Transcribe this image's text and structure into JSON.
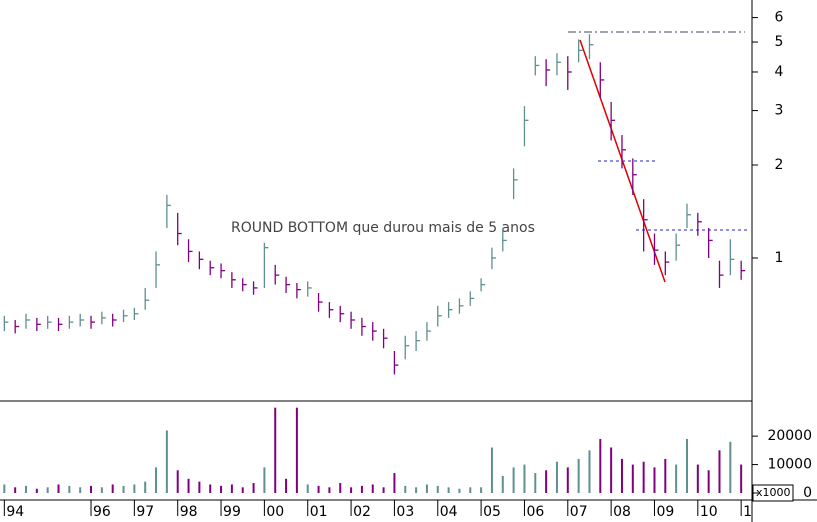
{
  "chart_data": {
    "type": "ohlc",
    "annotation": "ROUND BOTTOM que durou mais de 5 anos",
    "x": [
      1994,
      1994.25,
      1994.5,
      1994.75,
      1995,
      1995.25,
      1995.5,
      1995.75,
      1996,
      1996.25,
      1996.5,
      1996.75,
      1997,
      1997.25,
      1997.5,
      1997.75,
      1998,
      1998.25,
      1998.5,
      1998.75,
      1999,
      1999.25,
      1999.5,
      1999.75,
      2000,
      2000.25,
      2000.5,
      2000.75,
      2001,
      2001.25,
      2001.5,
      2001.75,
      2002,
      2002.25,
      2002.5,
      2002.75,
      2003,
      2003.25,
      2003.5,
      2003.75,
      2004,
      2004.25,
      2004.5,
      2004.75,
      2005,
      2005.25,
      2005.5,
      2005.75,
      2006,
      2006.25,
      2006.5,
      2006.75,
      2007,
      2007.25,
      2007.5,
      2007.75,
      2008,
      2008.25,
      2008.5,
      2008.75,
      2009,
      2009.25,
      2009.5,
      2009.75,
      2010,
      2010.25,
      2010.5,
      2010.75,
      2011
    ],
    "high": [
      0.65,
      0.63,
      0.66,
      0.64,
      0.65,
      0.64,
      0.65,
      0.66,
      0.65,
      0.67,
      0.66,
      0.68,
      0.69,
      0.8,
      1.05,
      1.6,
      1.4,
      1.15,
      1.05,
      0.98,
      0.96,
      0.9,
      0.86,
      0.84,
      1.12,
      0.95,
      0.87,
      0.83,
      0.84,
      0.77,
      0.72,
      0.7,
      0.67,
      0.64,
      0.62,
      0.59,
      0.5,
      0.56,
      0.58,
      0.62,
      0.7,
      0.72,
      0.74,
      0.78,
      0.86,
      1.08,
      1.25,
      1.95,
      3.1,
      4.5,
      4.4,
      4.6,
      4.5,
      5.1,
      5.3,
      4.3,
      3.2,
      2.5,
      2.1,
      1.55,
      1.2,
      1.05,
      1.2,
      1.5,
      1.4,
      1.25,
      0.98,
      1.15,
      0.98
    ],
    "low": [
      0.58,
      0.57,
      0.59,
      0.58,
      0.59,
      0.58,
      0.59,
      0.6,
      0.59,
      0.61,
      0.6,
      0.62,
      0.63,
      0.68,
      0.8,
      1.25,
      1.1,
      0.97,
      0.92,
      0.88,
      0.86,
      0.8,
      0.78,
      0.76,
      0.8,
      0.82,
      0.77,
      0.74,
      0.75,
      0.67,
      0.64,
      0.62,
      0.59,
      0.56,
      0.54,
      0.51,
      0.42,
      0.47,
      0.5,
      0.54,
      0.6,
      0.64,
      0.66,
      0.7,
      0.78,
      0.92,
      1.05,
      1.55,
      2.3,
      3.9,
      3.6,
      3.9,
      3.5,
      4.3,
      4.4,
      3.3,
      2.4,
      1.95,
      1.6,
      1.05,
      0.95,
      0.88,
      0.98,
      1.25,
      1.18,
      1.0,
      0.8,
      0.88,
      0.85
    ],
    "close": [
      0.62,
      0.6,
      0.63,
      0.61,
      0.62,
      0.61,
      0.62,
      0.63,
      0.62,
      0.64,
      0.63,
      0.65,
      0.66,
      0.73,
      0.95,
      1.48,
      1.2,
      1.05,
      0.99,
      0.93,
      0.91,
      0.85,
      0.82,
      0.8,
      1.08,
      0.88,
      0.82,
      0.79,
      0.8,
      0.72,
      0.68,
      0.66,
      0.63,
      0.6,
      0.58,
      0.55,
      0.45,
      0.52,
      0.54,
      0.58,
      0.65,
      0.68,
      0.7,
      0.74,
      0.82,
      1.0,
      1.14,
      1.79,
      2.79,
      4.2,
      4.06,
      4.3,
      4.0,
      4.7,
      4.9,
      3.77,
      2.79,
      2.24,
      1.86,
      1.33,
      1.06,
      0.97,
      1.1,
      1.38,
      1.31,
      1.14,
      0.88,
      0.99,
      0.91
    ],
    "ylim": [
      0.347,
      6.84
    ],
    "yticks": [
      1,
      2,
      3,
      4,
      5,
      6
    ],
    "log_scale": true,
    "up_color": "#5f8f8f",
    "down_color": "#800080",
    "xlim": [
      1993.9,
      2011.25
    ],
    "xticks": [
      {
        "value": 1994,
        "label": "94"
      },
      {
        "value": 1996,
        "label": "96"
      },
      {
        "value": 1997,
        "label": "97"
      },
      {
        "value": 1998,
        "label": "98"
      },
      {
        "value": 1999,
        "label": "99"
      },
      {
        "value": 2000,
        "label": "00"
      },
      {
        "value": 2001,
        "label": "01"
      },
      {
        "value": 2002,
        "label": "02"
      },
      {
        "value": 2003,
        "label": "03"
      },
      {
        "value": 2004,
        "label": "04"
      },
      {
        "value": 2005,
        "label": "05"
      },
      {
        "value": 2006,
        "label": "06"
      },
      {
        "value": 2007,
        "label": "07"
      },
      {
        "value": 2008,
        "label": "08"
      },
      {
        "value": 2009,
        "label": "09"
      },
      {
        "value": 2010,
        "label": "10"
      },
      {
        "value": 2011,
        "label": "1"
      }
    ],
    "volume": {
      "values": [
        3000,
        2000,
        2500,
        1500,
        2000,
        3000,
        2500,
        2000,
        2500,
        2000,
        3000,
        2500,
        3000,
        4000,
        9000,
        22000,
        8000,
        5000,
        4000,
        3000,
        2500,
        3000,
        2000,
        3500,
        9000,
        30000,
        5000,
        30000,
        3000,
        2500,
        2000,
        3500,
        2000,
        2500,
        3000,
        2000,
        7000,
        2500,
        2000,
        3000,
        2500,
        2000,
        1500,
        2000,
        2000,
        16000,
        6000,
        9000,
        10000,
        7000,
        8000,
        11000,
        9000,
        12000,
        15000,
        19000,
        16000,
        12000,
        10000,
        11000,
        9000,
        12000,
        10000,
        19000,
        10000,
        8000,
        15000,
        18000,
        10000
      ],
      "ylim": [
        0,
        32000
      ],
      "yticks": [
        0,
        10000,
        20000
      ],
      "unit_label": "x1000"
    }
  }
}
